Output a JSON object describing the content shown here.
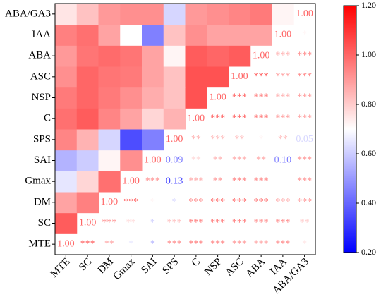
{
  "chart_data": {
    "type": "heatmap",
    "categories": [
      "MTE",
      "SC",
      "DM",
      "Gmax",
      "SAI",
      "SPS",
      "C",
      "NSP",
      "ASC",
      "ABA",
      "IAA",
      "ABA/GA3"
    ],
    "values": [
      [
        1.0
      ],
      [
        1.02,
        1.0
      ],
      [
        0.88,
        0.95,
        1.0
      ],
      [
        0.65,
        0.78,
        0.98,
        1.0
      ],
      [
        0.55,
        0.6,
        0.72,
        0.92,
        1.0
      ],
      [
        0.94,
        0.85,
        0.62,
        0.35,
        0.45,
        1.0
      ],
      [
        0.98,
        1.02,
        0.94,
        0.88,
        0.78,
        0.85,
        1.0
      ],
      [
        0.96,
        1.0,
        0.96,
        0.92,
        0.86,
        0.82,
        1.04,
        1.0
      ],
      [
        0.92,
        1.0,
        0.97,
        0.96,
        0.88,
        0.82,
        1.04,
        1.04,
        1.0
      ],
      [
        0.9,
        0.97,
        0.99,
        0.97,
        0.88,
        0.72,
        1.02,
        1.0,
        1.02,
        1.0
      ],
      [
        0.95,
        0.98,
        0.88,
        0.7,
        0.45,
        0.82,
        0.92,
        0.88,
        0.88,
        0.88,
        1.0
      ],
      [
        0.75,
        0.82,
        0.9,
        0.92,
        0.92,
        0.62,
        0.9,
        0.92,
        0.94,
        0.96,
        0.72,
        1.0
      ]
    ],
    "value_labels": [
      [
        "1.00"
      ],
      [
        null,
        "1.00"
      ],
      [
        null,
        null,
        "1.00"
      ],
      [
        null,
        null,
        null,
        "1.00"
      ],
      [
        null,
        null,
        null,
        null,
        "1.00"
      ],
      [
        null,
        null,
        null,
        null,
        null,
        "1.00"
      ],
      [
        null,
        null,
        null,
        null,
        null,
        null,
        "1.00"
      ],
      [
        null,
        null,
        null,
        null,
        null,
        null,
        null,
        "1.00"
      ],
      [
        null,
        null,
        null,
        null,
        null,
        null,
        null,
        null,
        "1.00"
      ],
      [
        null,
        null,
        null,
        null,
        null,
        null,
        null,
        null,
        null,
        "1.00"
      ],
      [
        null,
        null,
        null,
        null,
        null,
        null,
        null,
        null,
        null,
        null,
        "1.00"
      ],
      [
        null,
        null,
        null,
        null,
        null,
        null,
        null,
        null,
        null,
        null,
        null,
        "1.00"
      ]
    ],
    "significance": [
      [
        "***",
        "**",
        "*",
        "*",
        "***",
        "***",
        "***",
        "***",
        "***",
        "***",
        "*"
      ],
      [
        "***",
        "**",
        "*",
        "***",
        "***",
        "***",
        "***",
        "***",
        "***",
        "**"
      ],
      [
        "***",
        "*",
        "*",
        "***",
        "***",
        "***",
        "***",
        "***",
        "***"
      ],
      [
        "***",
        "0.13",
        "***",
        "**",
        "***",
        "***",
        "*",
        "***"
      ],
      [
        "0.09",
        "**",
        "**",
        "***",
        "**",
        "0.10",
        "***"
      ],
      [
        "**",
        "***",
        "**",
        "*",
        "**",
        "0.05"
      ],
      [
        "***",
        "***",
        "***",
        "***",
        "***"
      ],
      [
        "***",
        "***",
        "***",
        "***"
      ],
      [
        "***",
        "***",
        "***"
      ],
      [
        "***",
        "***"
      ],
      [
        "*"
      ]
    ],
    "colors": [
      "#0000ff",
      "#ffffff",
      "#ff0000"
    ],
    "zlim": [
      0.2,
      1.2
    ],
    "zticks": [
      {
        "value": 0.2,
        "label": "0.20"
      },
      {
        "value": 0.4,
        "label": "0.40"
      },
      {
        "value": 0.6,
        "label": "0.60"
      },
      {
        "value": 0.8,
        "label": "0.80"
      },
      {
        "value": 1.0,
        "label": "1.00"
      },
      {
        "value": 1.2,
        "label": "1.20"
      }
    ]
  }
}
